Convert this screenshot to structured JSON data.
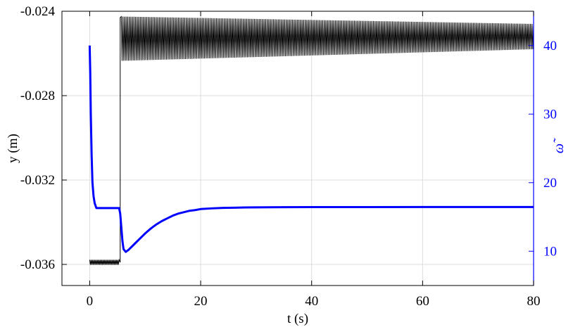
{
  "chart_data": {
    "type": "line",
    "title": "",
    "grid": true,
    "x_axis": {
      "label": "t (s)",
      "range": [
        -5,
        80
      ],
      "ticks": [
        0,
        20,
        40,
        60,
        80
      ],
      "tick_labels": [
        "0",
        "20",
        "40",
        "60",
        "80"
      ]
    },
    "y_left_axis": {
      "label": "y (m)",
      "range": [
        -0.037,
        -0.024
      ],
      "ticks": [
        -0.036,
        -0.032,
        -0.028,
        -0.024
      ],
      "tick_labels": [
        "-0.036",
        "-0.032",
        "-0.028",
        "-0.024"
      ],
      "color": "#000000"
    },
    "y_right_axis": {
      "label": "ω̃",
      "range": [
        5,
        45
      ],
      "ticks": [
        10,
        20,
        30,
        40
      ],
      "tick_labels": [
        "10",
        "20",
        "30",
        "40"
      ],
      "color": "#0000ff"
    },
    "series": [
      {
        "axis": "left",
        "color": "#000000",
        "style": "oscillating",
        "segments": [
          {
            "t_start": 0,
            "t_end": 5.3,
            "center": -0.0359,
            "amplitude": 0.00012,
            "cycles": 22
          },
          {
            "t_start": 5.7,
            "t_end": 80,
            "center_start": -0.0253,
            "center_end": -0.0252,
            "amplitude_start": 0.00105,
            "amplitude_end": 0.0006,
            "cycles": 260
          }
        ],
        "transition": {
          "t": 5.5,
          "from": -0.0359,
          "to": -0.0243
        }
      },
      {
        "axis": "right",
        "color": "#0000ff",
        "style": "line",
        "x": [
          0,
          0.1,
          0.2,
          0.35,
          0.5,
          0.7,
          0.9,
          1.2,
          2,
          3,
          4,
          5,
          5.3,
          5.5,
          5.7,
          5.9,
          6.1,
          6.5,
          7,
          8,
          9,
          10,
          11,
          12,
          13,
          14,
          15,
          16,
          17,
          18,
          19,
          20,
          22,
          24,
          26,
          28,
          30,
          35,
          40,
          50,
          60,
          70,
          80
        ],
        "y": [
          40,
          36,
          30,
          24,
          20,
          18,
          17,
          16.3,
          16.3,
          16.3,
          16.3,
          16.3,
          16.3,
          15.5,
          13.5,
          11.5,
          10.3,
          9.9,
          10.2,
          11,
          11.8,
          12.6,
          13.3,
          13.9,
          14.4,
          14.8,
          15.2,
          15.5,
          15.7,
          15.9,
          16.0,
          16.15,
          16.25,
          16.32,
          16.35,
          16.38,
          16.4,
          16.42,
          16.43,
          16.44,
          16.45,
          16.45,
          16.45
        ]
      }
    ]
  }
}
